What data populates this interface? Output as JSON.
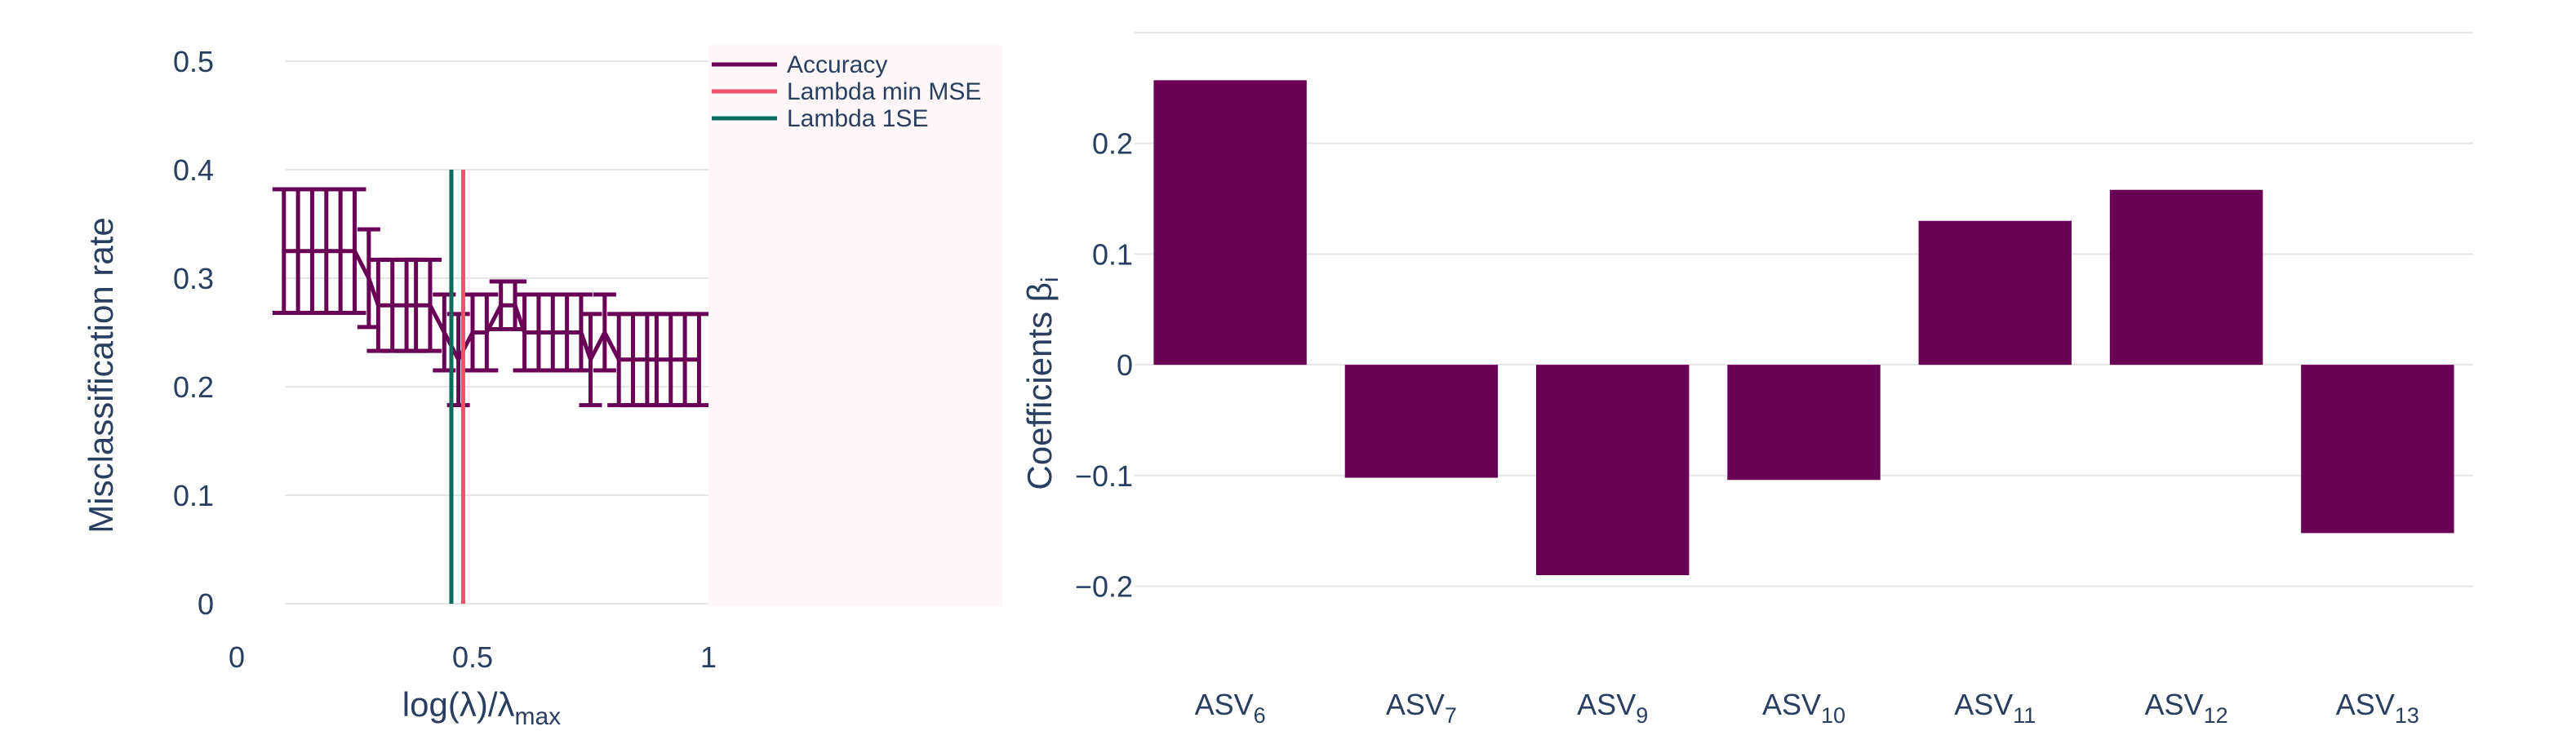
{
  "colors": {
    "accuracy": "#6a0056",
    "lambda_min": "#f0526a",
    "lambda_1se": "#0a6b5b",
    "bar": "#6a0056",
    "text": "#2a3f5f",
    "grid": "#e5e5e5",
    "legend_bg": "#fdf7f9"
  },
  "chart_data": [
    {
      "type": "line",
      "xlabel": "log(λ)/λ",
      "xlabel_sub": "max",
      "ylabel": "Misclassification rate",
      "xlim": [
        0,
        1
      ],
      "ylim": [
        0,
        0.5
      ],
      "x_ticks": [
        "0",
        "0.5",
        "1"
      ],
      "y_ticks": [
        "0",
        "0.1",
        "0.2",
        "0.3",
        "0.4",
        "0.5"
      ],
      "grid": "horizontal",
      "legend_position": "top-right",
      "series": [
        {
          "name": "Accuracy",
          "x": [
            0.1,
            0.13,
            0.16,
            0.19,
            0.22,
            0.25,
            0.28,
            0.3,
            0.33,
            0.36,
            0.38,
            0.41,
            0.44,
            0.47,
            0.5,
            0.53,
            0.56,
            0.59,
            0.61,
            0.64,
            0.67,
            0.7,
            0.73,
            0.75,
            0.78,
            0.81,
            0.84,
            0.87,
            0.89,
            0.92,
            0.95,
            0.98
          ],
          "y": [
            0.325,
            0.325,
            0.325,
            0.325,
            0.325,
            0.325,
            0.3,
            0.275,
            0.275,
            0.275,
            0.275,
            0.275,
            0.25,
            0.225,
            0.25,
            0.25,
            0.275,
            0.275,
            0.25,
            0.25,
            0.25,
            0.25,
            0.25,
            0.225,
            0.25,
            0.225,
            0.225,
            0.225,
            0.225,
            0.225,
            0.225,
            0.225
          ],
          "error": [
            0.057,
            0.057,
            0.057,
            0.057,
            0.057,
            0.057,
            0.045,
            0.042,
            0.042,
            0.042,
            0.042,
            0.042,
            0.035,
            0.042,
            0.035,
            0.035,
            0.022,
            0.022,
            0.035,
            0.035,
            0.035,
            0.035,
            0.035,
            0.042,
            0.035,
            0.042,
            0.042,
            0.042,
            0.042,
            0.042,
            0.042,
            0.042
          ]
        }
      ],
      "vlines": [
        {
          "name": "Lambda min MSE",
          "x": 0.48,
          "y_range": [
            0,
            0.4
          ]
        },
        {
          "name": "Lambda 1SE",
          "x": 0.455,
          "y_range": [
            0,
            0.4
          ]
        }
      ]
    },
    {
      "type": "bar",
      "ylabel": "Coefficients β",
      "ylabel_sub": "i",
      "categories": [
        {
          "base": "ASV",
          "sub": "6"
        },
        {
          "base": "ASV",
          "sub": "7"
        },
        {
          "base": "ASV",
          "sub": "9"
        },
        {
          "base": "ASV",
          "sub": "10"
        },
        {
          "base": "ASV",
          "sub": "11"
        },
        {
          "base": "ASV",
          "sub": "12"
        },
        {
          "base": "ASV",
          "sub": "13"
        }
      ],
      "values": [
        0.257,
        -0.102,
        -0.19,
        -0.104,
        0.13,
        0.158,
        -0.152
      ],
      "ylim": [
        -0.26,
        0.3
      ],
      "y_ticks": [
        {
          "v": 0.2,
          "label": "0.2"
        },
        {
          "v": 0.1,
          "label": "0.1"
        },
        {
          "v": 0,
          "label": "0"
        },
        {
          "v": -0.1,
          "label": "−0.1"
        },
        {
          "v": -0.2,
          "label": "−0.2"
        }
      ],
      "grid": "horizontal",
      "legend_position": "none"
    }
  ]
}
